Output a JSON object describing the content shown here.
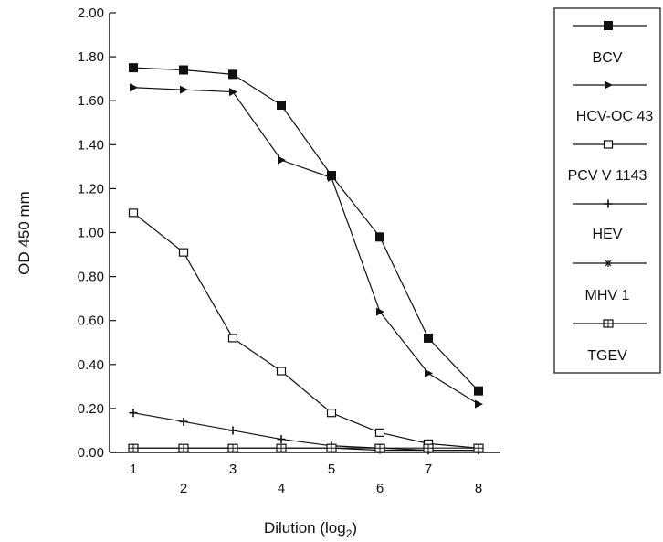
{
  "chart_data": {
    "type": "line",
    "xlabel": "Dilution (log",
    "xlabel_sub": "2",
    "xlabel_end": ")",
    "ylabel": "OD 450 mm",
    "x": [
      1,
      2,
      3,
      4,
      5,
      6,
      7,
      8
    ],
    "xticks": [
      "1",
      "2",
      "3",
      "4",
      "5",
      "6",
      "7",
      "8"
    ],
    "yticks": [
      "0.00",
      "0.20",
      "0.40",
      "0.60",
      "0.80",
      "1.00",
      "1.20",
      "1.40",
      "1.60",
      "1.80",
      "2.00"
    ],
    "ylim": [
      0,
      2.0
    ],
    "grid": false,
    "legend_position": "right",
    "series": [
      {
        "name": "BCV",
        "marker": "filled-square",
        "values": [
          1.75,
          1.74,
          1.72,
          1.58,
          1.26,
          0.98,
          0.52,
          0.28
        ]
      },
      {
        "name": "HCV-OC 43",
        "marker": "filled-triangle-right",
        "values": [
          1.66,
          1.65,
          1.64,
          1.33,
          1.25,
          0.64,
          0.36,
          0.22
        ]
      },
      {
        "name": "PCV V 1143",
        "marker": "open-square",
        "values": [
          1.09,
          0.91,
          0.52,
          0.37,
          0.18,
          0.09,
          0.04,
          0.02
        ]
      },
      {
        "name": "HEV",
        "marker": "plus",
        "values": [
          0.18,
          0.14,
          0.1,
          0.06,
          0.03,
          0.02,
          0.01,
          0.01
        ]
      },
      {
        "name": "MHV 1",
        "marker": "asterisk",
        "values": [
          0.02,
          0.02,
          0.02,
          0.02,
          0.02,
          0.01,
          0.01,
          0.01
        ]
      },
      {
        "name": "TGEV",
        "marker": "crossed-square",
        "values": [
          0.02,
          0.02,
          0.02,
          0.02,
          0.02,
          0.02,
          0.02,
          0.02
        ]
      }
    ],
    "colors": {
      "ink": "#111111",
      "background": "#ffffff"
    }
  }
}
